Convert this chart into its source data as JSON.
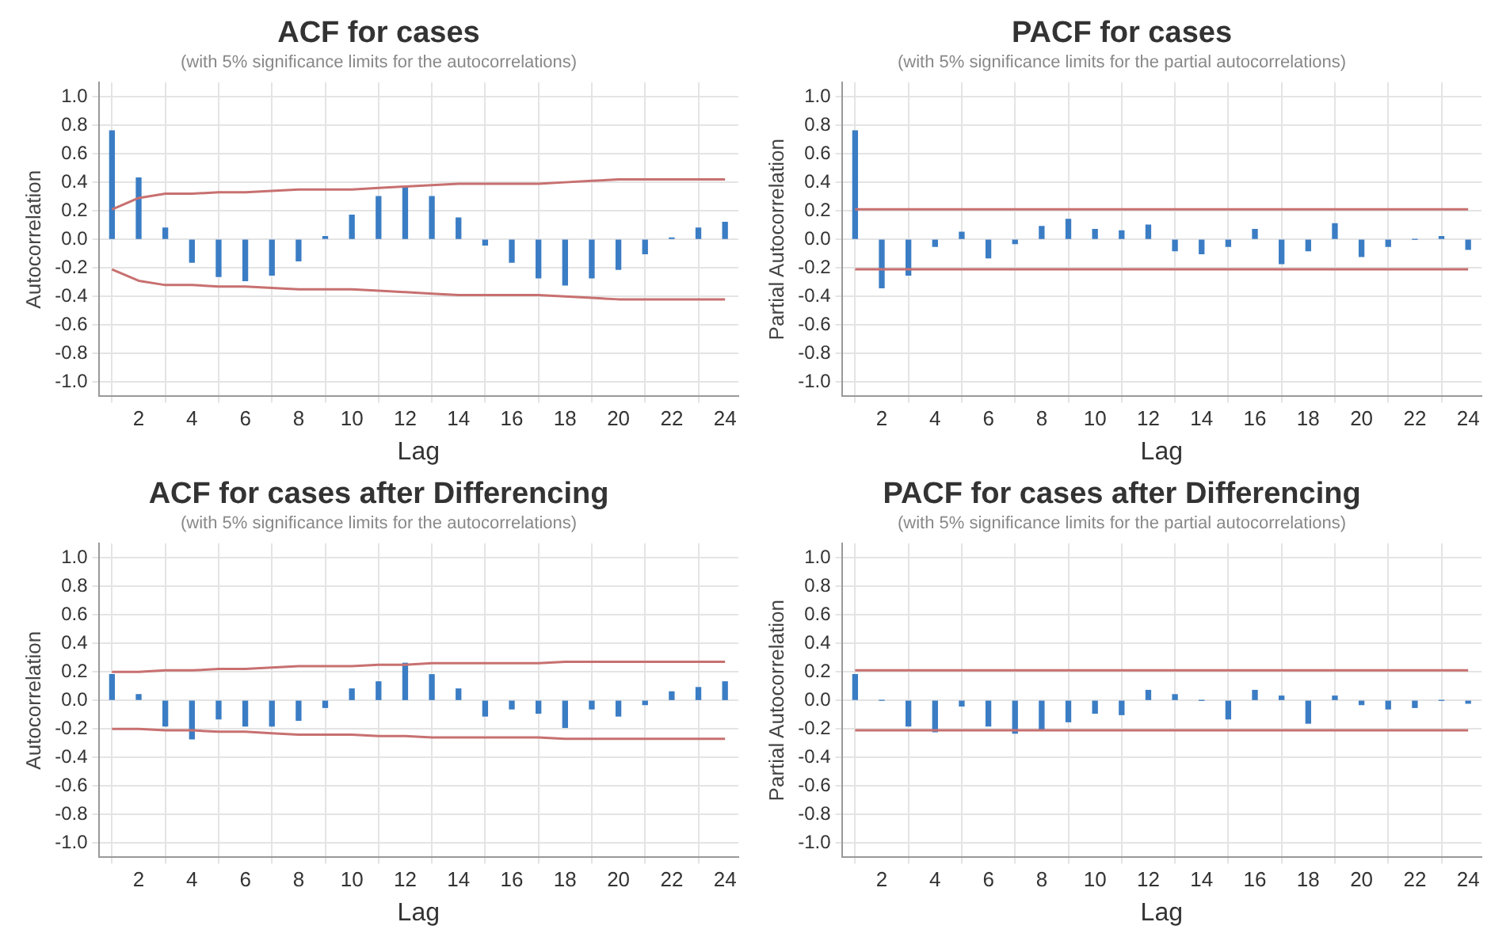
{
  "chart_data": [
    {
      "type": "bar",
      "title": "ACF for cases",
      "subtitle": "(with 5% significance limits for the autocorrelations)",
      "xlabel": "Lag",
      "ylabel": "Autocorrelation",
      "x": [
        1,
        2,
        3,
        4,
        5,
        6,
        7,
        8,
        9,
        10,
        11,
        12,
        13,
        14,
        15,
        16,
        17,
        18,
        19,
        20,
        21,
        22,
        23,
        24
      ],
      "xlim": [
        0.5,
        24.5
      ],
      "xticks": [
        2,
        4,
        6,
        8,
        10,
        12,
        14,
        16,
        18,
        20,
        22,
        24
      ],
      "ylim": [
        -1.1,
        1.1
      ],
      "yticks": [
        {
          "value": -1,
          "label": "-1.0"
        },
        {
          "value": -0.8,
          "label": "-0.8"
        },
        {
          "value": -0.6,
          "label": "-0.6"
        },
        {
          "value": -0.4,
          "label": "-0.4"
        },
        {
          "value": -0.2,
          "label": "-0.2"
        },
        {
          "value": 0,
          "label": "0.0"
        },
        {
          "value": 0.2,
          "label": "0.2"
        },
        {
          "value": 0.4,
          "label": "0.4"
        },
        {
          "value": 0.6,
          "label": "0.6"
        },
        {
          "value": 0.8,
          "label": "0.8"
        },
        {
          "value": 1,
          "label": "1.0"
        }
      ],
      "grid": true,
      "series": [
        {
          "type": "bar",
          "color": "#3b7dc4",
          "values": [
            0.76,
            0.43,
            0.08,
            -0.16,
            -0.26,
            -0.29,
            -0.25,
            -0.15,
            0.02,
            0.17,
            0.3,
            0.37,
            0.3,
            0.15,
            -0.04,
            -0.16,
            -0.27,
            -0.32,
            -0.27,
            -0.21,
            -0.1,
            0.01,
            0.08,
            0.12
          ]
        },
        {
          "type": "line",
          "color": "#c87070",
          "values": [
            0.21,
            0.29,
            0.32,
            0.32,
            0.33,
            0.33,
            0.34,
            0.35,
            0.35,
            0.35,
            0.36,
            0.37,
            0.38,
            0.39,
            0.39,
            0.39,
            0.39,
            0.4,
            0.41,
            0.42,
            0.42,
            0.42,
            0.42,
            0.42
          ]
        },
        {
          "type": "line",
          "color": "#c87070",
          "values": [
            -0.21,
            -0.29,
            -0.32,
            -0.32,
            -0.33,
            -0.33,
            -0.34,
            -0.35,
            -0.35,
            -0.35,
            -0.36,
            -0.37,
            -0.38,
            -0.39,
            -0.39,
            -0.39,
            -0.39,
            -0.4,
            -0.41,
            -0.42,
            -0.42,
            -0.42,
            -0.42,
            -0.42
          ]
        }
      ]
    },
    {
      "type": "bar",
      "title": "PACF for cases",
      "subtitle": "(with 5% significance limits for the partial autocorrelations)",
      "xlabel": "Lag",
      "ylabel": "Partial Autocorrelation",
      "x": [
        1,
        2,
        3,
        4,
        5,
        6,
        7,
        8,
        9,
        10,
        11,
        12,
        13,
        14,
        15,
        16,
        17,
        18,
        19,
        20,
        21,
        22,
        23,
        24
      ],
      "xlim": [
        0.5,
        24.5
      ],
      "xticks": [
        2,
        4,
        6,
        8,
        10,
        12,
        14,
        16,
        18,
        20,
        22,
        24
      ],
      "ylim": [
        -1.1,
        1.1
      ],
      "yticks": [
        {
          "value": -1,
          "label": "-1.0"
        },
        {
          "value": -0.8,
          "label": "-0.8"
        },
        {
          "value": -0.6,
          "label": "-0.6"
        },
        {
          "value": -0.4,
          "label": "-0.4"
        },
        {
          "value": -0.2,
          "label": "-0.2"
        },
        {
          "value": 0,
          "label": "0.0"
        },
        {
          "value": 0.2,
          "label": "0.2"
        },
        {
          "value": 0.4,
          "label": "0.4"
        },
        {
          "value": 0.6,
          "label": "0.6"
        },
        {
          "value": 0.8,
          "label": "0.8"
        },
        {
          "value": 1,
          "label": "1.0"
        }
      ],
      "grid": true,
      "series": [
        {
          "type": "bar",
          "color": "#3b7dc4",
          "values": [
            0.76,
            -0.34,
            -0.25,
            -0.05,
            0.05,
            -0.13,
            -0.03,
            0.09,
            0.14,
            0.07,
            0.06,
            0.1,
            -0.08,
            -0.1,
            -0.05,
            0.07,
            -0.17,
            -0.08,
            0.11,
            -0.12,
            -0.05,
            0,
            0.02,
            -0.07
          ]
        },
        {
          "type": "line",
          "color": "#c87070",
          "values": [
            0.21,
            0.21,
            0.21,
            0.21,
            0.21,
            0.21,
            0.21,
            0.21,
            0.21,
            0.21,
            0.21,
            0.21,
            0.21,
            0.21,
            0.21,
            0.21,
            0.21,
            0.21,
            0.21,
            0.21,
            0.21,
            0.21,
            0.21,
            0.21
          ]
        },
        {
          "type": "line",
          "color": "#c87070",
          "values": [
            -0.21,
            -0.21,
            -0.21,
            -0.21,
            -0.21,
            -0.21,
            -0.21,
            -0.21,
            -0.21,
            -0.21,
            -0.21,
            -0.21,
            -0.21,
            -0.21,
            -0.21,
            -0.21,
            -0.21,
            -0.21,
            -0.21,
            -0.21,
            -0.21,
            -0.21,
            -0.21,
            -0.21
          ]
        }
      ]
    },
    {
      "type": "bar",
      "title": "ACF for cases after Differencing",
      "subtitle": "(with 5% significance limits for the autocorrelations)",
      "xlabel": "Lag",
      "ylabel": "Autocorrelation",
      "x": [
        1,
        2,
        3,
        4,
        5,
        6,
        7,
        8,
        9,
        10,
        11,
        12,
        13,
        14,
        15,
        16,
        17,
        18,
        19,
        20,
        21,
        22,
        23,
        24
      ],
      "xlim": [
        0.5,
        24.5
      ],
      "xticks": [
        2,
        4,
        6,
        8,
        10,
        12,
        14,
        16,
        18,
        20,
        22,
        24
      ],
      "ylim": [
        -1.1,
        1.1
      ],
      "yticks": [
        {
          "value": -1,
          "label": "-1.0"
        },
        {
          "value": -0.8,
          "label": "-0.8"
        },
        {
          "value": -0.6,
          "label": "-0.6"
        },
        {
          "value": -0.4,
          "label": "-0.4"
        },
        {
          "value": -0.2,
          "label": "-0.2"
        },
        {
          "value": 0,
          "label": "0.0"
        },
        {
          "value": 0.2,
          "label": "0.2"
        },
        {
          "value": 0.4,
          "label": "0.4"
        },
        {
          "value": 0.6,
          "label": "0.6"
        },
        {
          "value": 0.8,
          "label": "0.8"
        },
        {
          "value": 1,
          "label": "1.0"
        }
      ],
      "grid": true,
      "series": [
        {
          "type": "bar",
          "color": "#3b7dc4",
          "values": [
            0.18,
            0.04,
            -0.18,
            -0.27,
            -0.13,
            -0.18,
            -0.18,
            -0.14,
            -0.05,
            0.08,
            0.13,
            0.26,
            0.18,
            0.08,
            -0.11,
            -0.06,
            -0.09,
            -0.19,
            -0.06,
            -0.11,
            -0.03,
            0.06,
            0.09,
            0.13
          ]
        },
        {
          "type": "line",
          "color": "#c87070",
          "values": [
            0.2,
            0.2,
            0.21,
            0.21,
            0.22,
            0.22,
            0.23,
            0.24,
            0.24,
            0.24,
            0.25,
            0.25,
            0.26,
            0.26,
            0.26,
            0.26,
            0.26,
            0.27,
            0.27,
            0.27,
            0.27,
            0.27,
            0.27,
            0.27
          ]
        },
        {
          "type": "line",
          "color": "#c87070",
          "values": [
            -0.2,
            -0.2,
            -0.21,
            -0.21,
            -0.22,
            -0.22,
            -0.23,
            -0.24,
            -0.24,
            -0.24,
            -0.25,
            -0.25,
            -0.26,
            -0.26,
            -0.26,
            -0.26,
            -0.26,
            -0.27,
            -0.27,
            -0.27,
            -0.27,
            -0.27,
            -0.27,
            -0.27
          ]
        }
      ]
    },
    {
      "type": "bar",
      "title": "PACF for cases after Differencing",
      "subtitle": "(with 5% significance limits for the partial autocorrelations)",
      "xlabel": "Lag",
      "ylabel": "Partial Autocorrelation",
      "x": [
        1,
        2,
        3,
        4,
        5,
        6,
        7,
        8,
        9,
        10,
        11,
        12,
        13,
        14,
        15,
        16,
        17,
        18,
        19,
        20,
        21,
        22,
        23,
        24
      ],
      "xlim": [
        0.5,
        24.5
      ],
      "xticks": [
        2,
        4,
        6,
        8,
        10,
        12,
        14,
        16,
        18,
        20,
        22,
        24
      ],
      "ylim": [
        -1.1,
        1.1
      ],
      "yticks": [
        {
          "value": -1,
          "label": "-1.0"
        },
        {
          "value": -0.8,
          "label": "-0.8"
        },
        {
          "value": -0.6,
          "label": "-0.6"
        },
        {
          "value": -0.4,
          "label": "-0.4"
        },
        {
          "value": -0.2,
          "label": "-0.2"
        },
        {
          "value": 0,
          "label": "0.0"
        },
        {
          "value": 0.2,
          "label": "0.2"
        },
        {
          "value": 0.4,
          "label": "0.4"
        },
        {
          "value": 0.6,
          "label": "0.6"
        },
        {
          "value": 0.8,
          "label": "0.8"
        },
        {
          "value": 1,
          "label": "1.0"
        }
      ],
      "grid": true,
      "series": [
        {
          "type": "bar",
          "color": "#3b7dc4",
          "values": [
            0.18,
            0,
            -0.18,
            -0.22,
            -0.04,
            -0.18,
            -0.23,
            -0.21,
            -0.15,
            -0.09,
            -0.1,
            0.07,
            0.04,
            0,
            -0.13,
            0.07,
            0.03,
            -0.16,
            0.03,
            -0.03,
            -0.06,
            -0.05,
            0,
            -0.02
          ]
        },
        {
          "type": "line",
          "color": "#c87070",
          "values": [
            0.21,
            0.21,
            0.21,
            0.21,
            0.21,
            0.21,
            0.21,
            0.21,
            0.21,
            0.21,
            0.21,
            0.21,
            0.21,
            0.21,
            0.21,
            0.21,
            0.21,
            0.21,
            0.21,
            0.21,
            0.21,
            0.21,
            0.21,
            0.21
          ]
        },
        {
          "type": "line",
          "color": "#c87070",
          "values": [
            -0.21,
            -0.21,
            -0.21,
            -0.21,
            -0.21,
            -0.21,
            -0.21,
            -0.21,
            -0.21,
            -0.21,
            -0.21,
            -0.21,
            -0.21,
            -0.21,
            -0.21,
            -0.21,
            -0.21,
            -0.21,
            -0.21,
            -0.21,
            -0.21,
            -0.21,
            -0.21,
            -0.21
          ]
        }
      ]
    }
  ]
}
